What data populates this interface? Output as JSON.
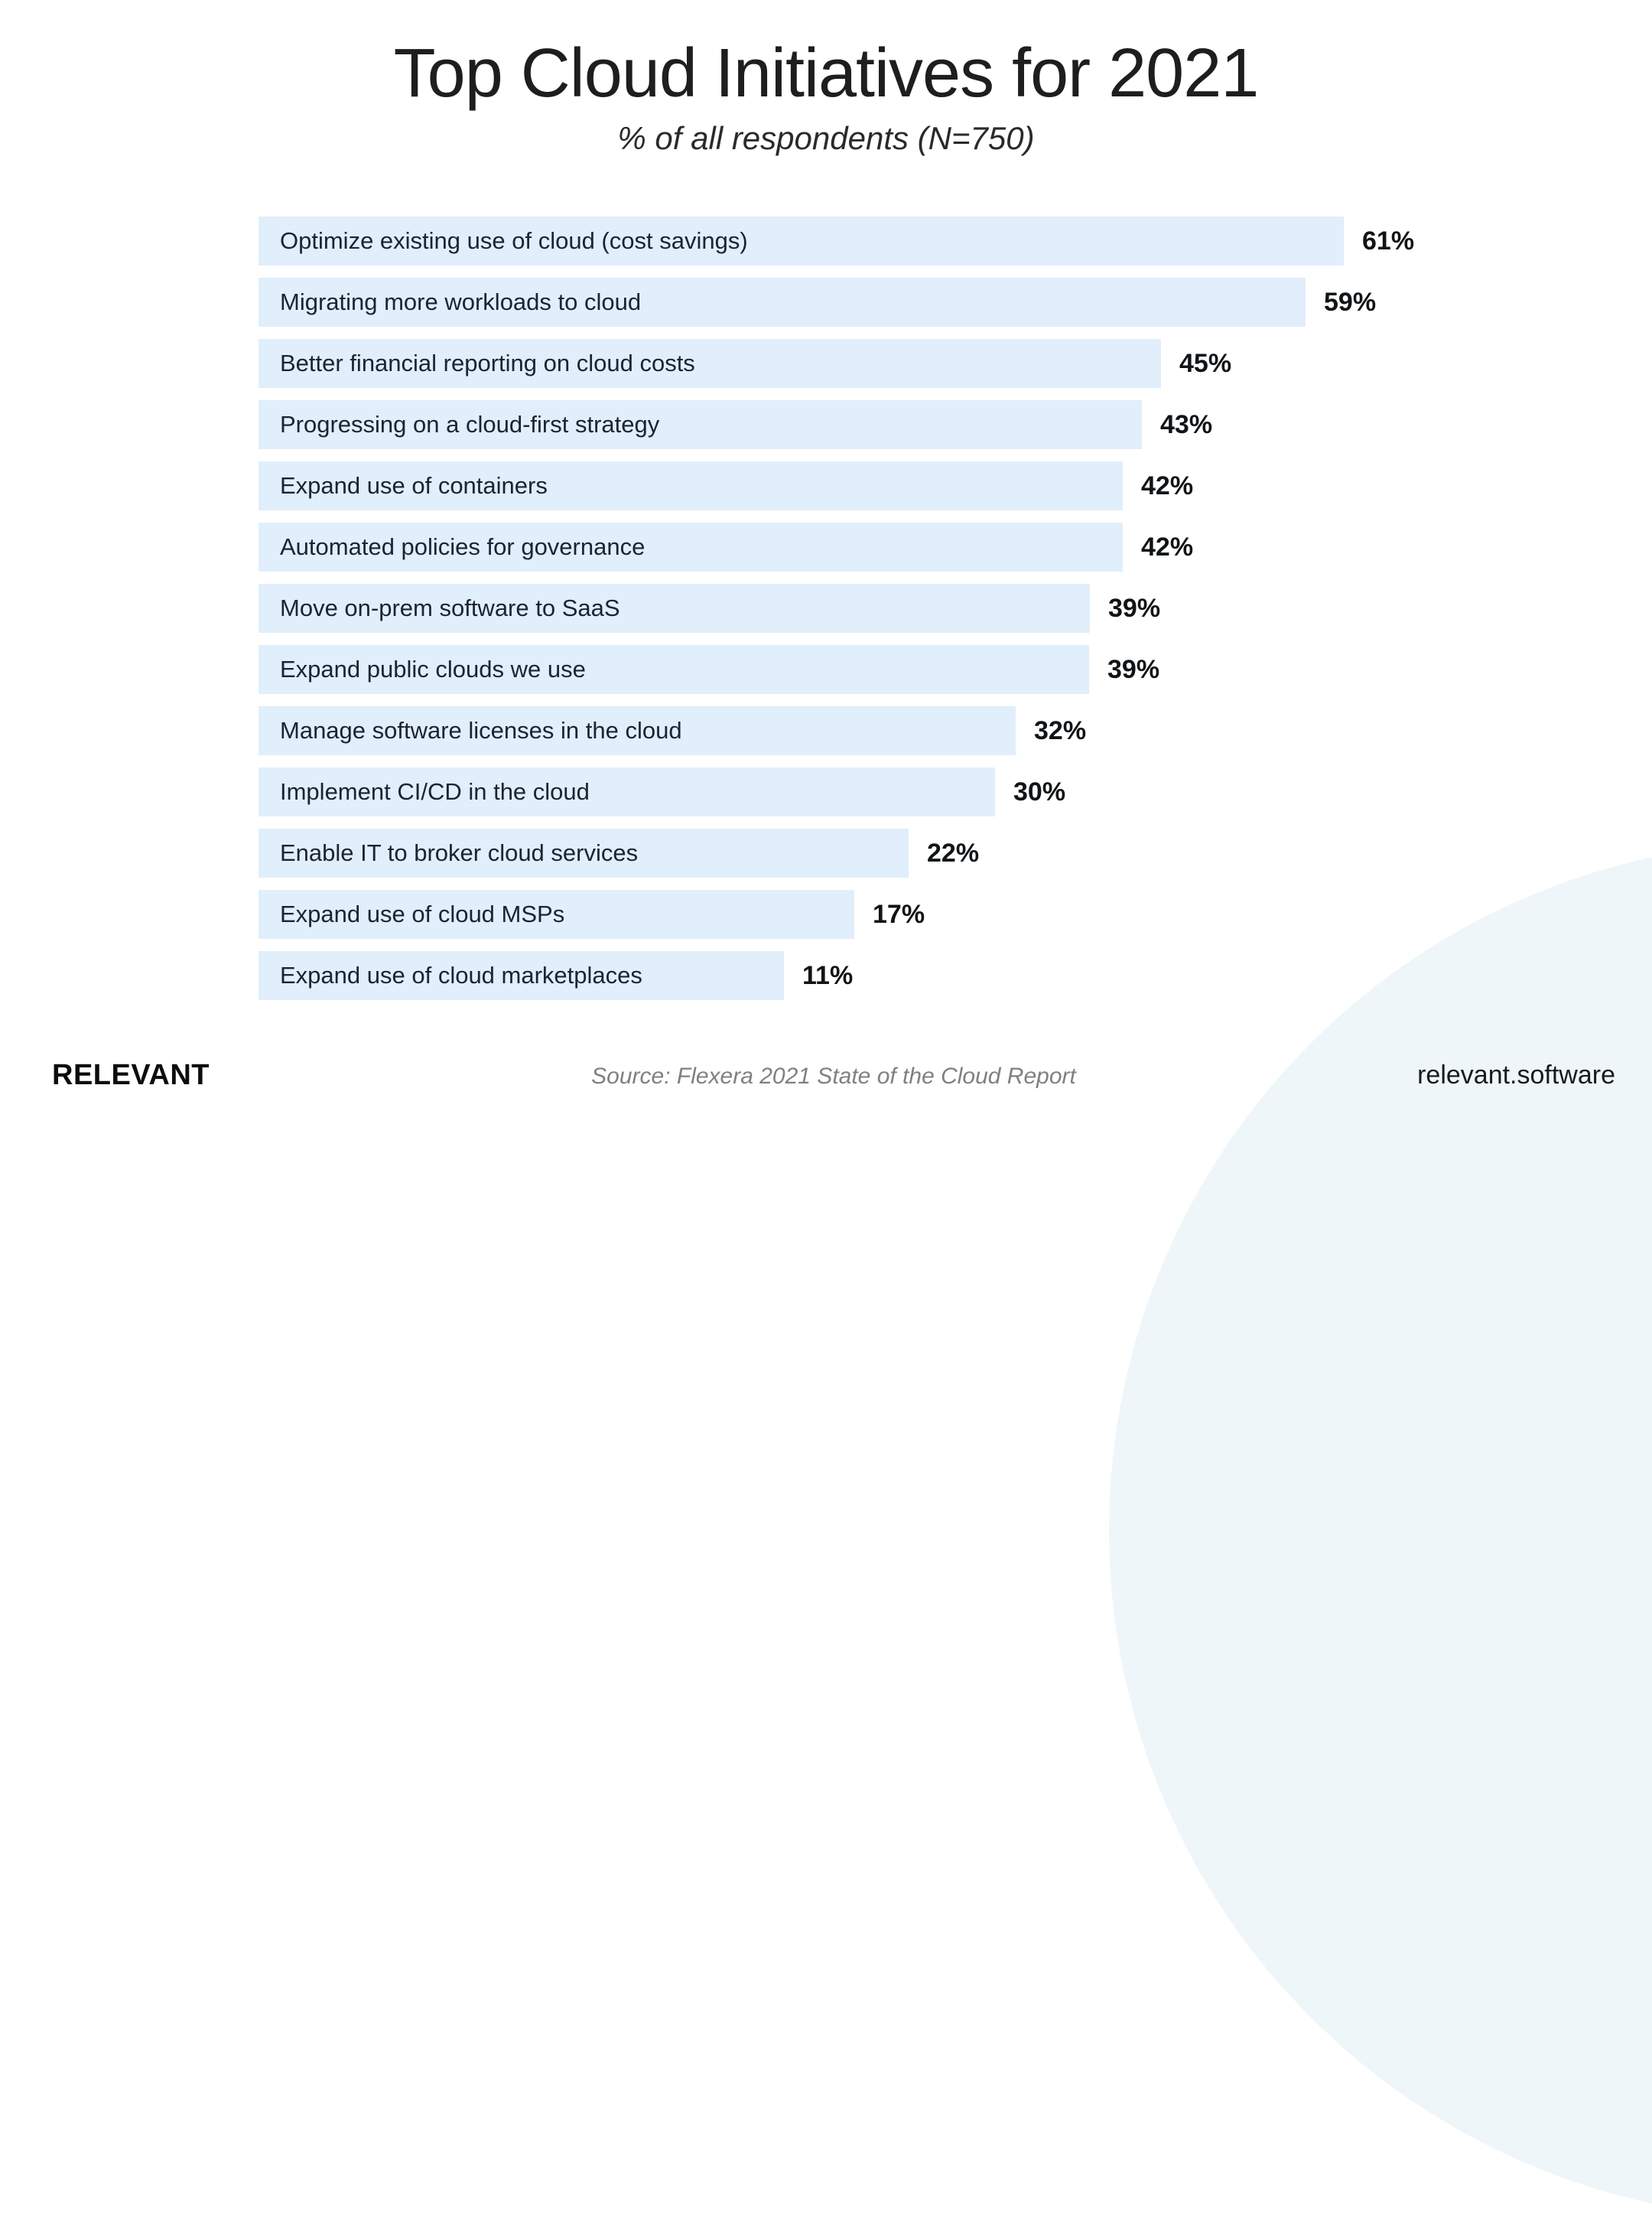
{
  "header": {
    "title": "Top Cloud Initiatives for 2021",
    "subtitle": "% of all respondents (N=750)"
  },
  "chart_data": {
    "type": "bar",
    "orientation": "horizontal",
    "title": "Top Cloud Initiatives for 2021",
    "subtitle": "% of all respondents (N=750)",
    "value_unit": "percent of respondents",
    "grid": false,
    "legend": "none",
    "categories": [
      "Optimize existing use of cloud (cost savings)",
      "Migrating more workloads to cloud",
      "Better financial reporting on cloud costs",
      "Progressing on a cloud-first strategy",
      "Expand use of containers",
      "Automated policies for governance",
      "Move on-prem software to SaaS",
      "Expand public clouds we use",
      "Manage software licenses in the cloud",
      "Implement CI/CD in the cloud",
      "Enable IT to broker cloud services",
      "Expand use of cloud MSPs",
      "Expand use of cloud marketplaces"
    ],
    "values": [
      61,
      59,
      45,
      43,
      42,
      42,
      39,
      39,
      32,
      30,
      22,
      17,
      11
    ],
    "value_labels": [
      "61%",
      "59%",
      "45%",
      "43%",
      "42%",
      "42%",
      "39%",
      "39%",
      "32%",
      "30%",
      "22%",
      "17%",
      "11%"
    ],
    "bar_pixel_widths": [
      1419,
      1369,
      1180,
      1155,
      1130,
      1130,
      1087,
      1086,
      990,
      963,
      850,
      779,
      687
    ],
    "bar_color": "#e1eefb",
    "label_color": "#1b2430",
    "value_color": "#101417",
    "background_circle_color": "#eff6fa"
  },
  "footer": {
    "logo": "RELEVANT",
    "source": "Source: Flexera 2021 State of the Cloud Report",
    "website": "relevant.software"
  }
}
